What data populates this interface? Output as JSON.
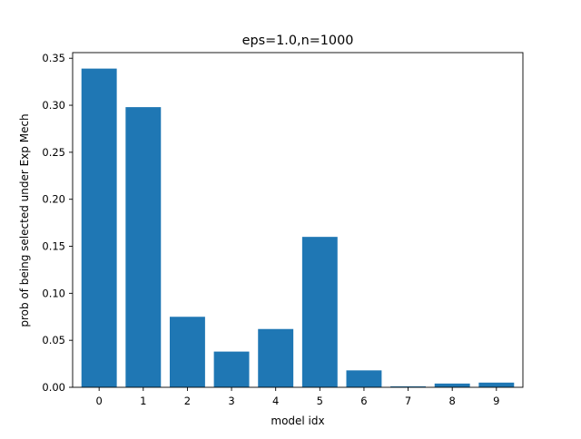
{
  "chart_data": {
    "type": "bar",
    "title": "eps=1.0,n=1000",
    "xlabel": "model idx",
    "ylabel": "prob of being selected under Exp Mech",
    "categories": [
      "0",
      "1",
      "2",
      "3",
      "4",
      "5",
      "6",
      "7",
      "8",
      "9"
    ],
    "values": [
      0.339,
      0.298,
      0.075,
      0.038,
      0.062,
      0.16,
      0.018,
      0.001,
      0.004,
      0.005
    ],
    "ylim": [
      0,
      0.356
    ],
    "yticks": [
      "0.00",
      "0.05",
      "0.10",
      "0.15",
      "0.20",
      "0.25",
      "0.30",
      "0.35"
    ],
    "grid": false,
    "bar_color": "#1f77b4"
  }
}
